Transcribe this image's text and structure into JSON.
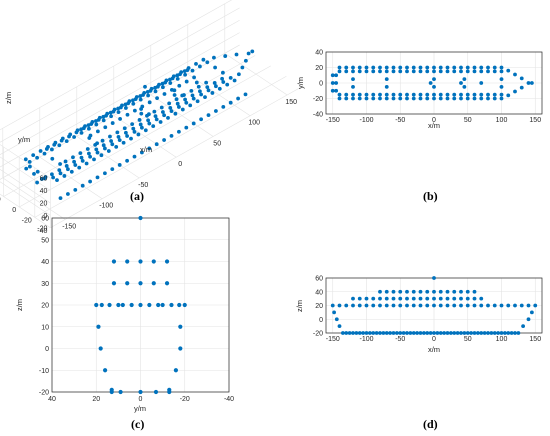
{
  "chart_data": [
    {
      "type": "scatter3d",
      "caption": "(a)",
      "xlabel": "x/m",
      "ylabel": "y/m",
      "zlabel": "z/m",
      "xlim": [
        -170,
        170
      ],
      "ylim": [
        -40,
        40
      ],
      "zlim": [
        -20,
        60
      ],
      "xticks": [
        -150,
        -100,
        -50,
        0,
        50,
        100,
        150
      ],
      "yticks": [
        -40,
        -20,
        0,
        20,
        40
      ],
      "zticks": [
        -20,
        0,
        20,
        40,
        60
      ],
      "xtick_labels": [
        "-150",
        "-100",
        "-50",
        "0",
        "50",
        "100",
        "150"
      ],
      "ytick_labels": [
        "-40",
        "-20",
        "0",
        "20",
        "40"
      ],
      "ztick_labels": [
        "-20",
        "0",
        "20",
        "40",
        "60"
      ],
      "color": "#0072BD",
      "grid": true
    },
    {
      "type": "scatter",
      "caption": "(b)",
      "xlabel": "x/m",
      "ylabel": "y/m",
      "xlim": [
        -160,
        160
      ],
      "ylim": [
        -40,
        40
      ],
      "xticks": [
        -150,
        -100,
        -50,
        0,
        50,
        100,
        150
      ],
      "yticks": [
        -40,
        -20,
        0,
        20,
        40
      ],
      "xtick_labels": [
        "-150",
        "-100",
        "-50",
        "0",
        "50",
        "100",
        "150"
      ],
      "ytick_labels": [
        "-40",
        "-20",
        "0",
        "20",
        "40"
      ],
      "color": "#0072BD",
      "grid": true
    },
    {
      "type": "scatter",
      "caption": "(c)",
      "xlabel": "y/m",
      "ylabel": "z/m",
      "xlim": [
        40,
        -40
      ],
      "ylim": [
        -20,
        60
      ],
      "xticks": [
        40,
        20,
        0,
        -20,
        -40
      ],
      "yticks": [
        -20,
        -10,
        0,
        10,
        20,
        30,
        40,
        50,
        60
      ],
      "xtick_labels": [
        "40",
        "20",
        "0",
        "-20",
        "-40"
      ],
      "ytick_labels": [
        "-20",
        "-10",
        "0",
        "10",
        "20",
        "30",
        "40",
        "50",
        "60"
      ],
      "color": "#0072BD",
      "grid": true,
      "points": [
        [
          0,
          60
        ],
        [
          12,
          40
        ],
        [
          6,
          40
        ],
        [
          0,
          40
        ],
        [
          -6,
          40
        ],
        [
          -12,
          40
        ],
        [
          12,
          30
        ],
        [
          6,
          30
        ],
        [
          0,
          30
        ],
        [
          -6,
          30
        ],
        [
          -12,
          30
        ],
        [
          20,
          20
        ],
        [
          17.5,
          20
        ],
        [
          14,
          20
        ],
        [
          10,
          20
        ],
        [
          8,
          20
        ],
        [
          4,
          20
        ],
        [
          0,
          20
        ],
        [
          -4,
          20
        ],
        [
          -8,
          20
        ],
        [
          -10,
          20
        ],
        [
          -14,
          20
        ],
        [
          -17.5,
          20
        ],
        [
          -20,
          20
        ],
        [
          19,
          10
        ],
        [
          -18,
          10
        ],
        [
          18,
          0
        ],
        [
          -18,
          0
        ],
        [
          16,
          -10
        ],
        [
          -16,
          -10
        ],
        [
          13,
          -19
        ],
        [
          13,
          -20
        ],
        [
          9,
          -20
        ],
        [
          0,
          -20
        ],
        [
          -7,
          -20
        ],
        [
          -13,
          -19
        ],
        [
          -13,
          -20
        ]
      ]
    },
    {
      "type": "scatter",
      "caption": "(d)",
      "xlabel": "x/m",
      "ylabel": "z/m",
      "xlim": [
        -160,
        160
      ],
      "ylim": [
        -20,
        60
      ],
      "xticks": [
        -150,
        -100,
        -50,
        0,
        50,
        100,
        150
      ],
      "yticks": [
        -20,
        0,
        20,
        40,
        60
      ],
      "xtick_labels": [
        "-150",
        "-100",
        "-50",
        "0",
        "50",
        "100",
        "150"
      ],
      "ytick_labels": [
        "-20",
        "0",
        "20",
        "40",
        "60"
      ],
      "color": "#0072BD",
      "grid": true
    }
  ]
}
